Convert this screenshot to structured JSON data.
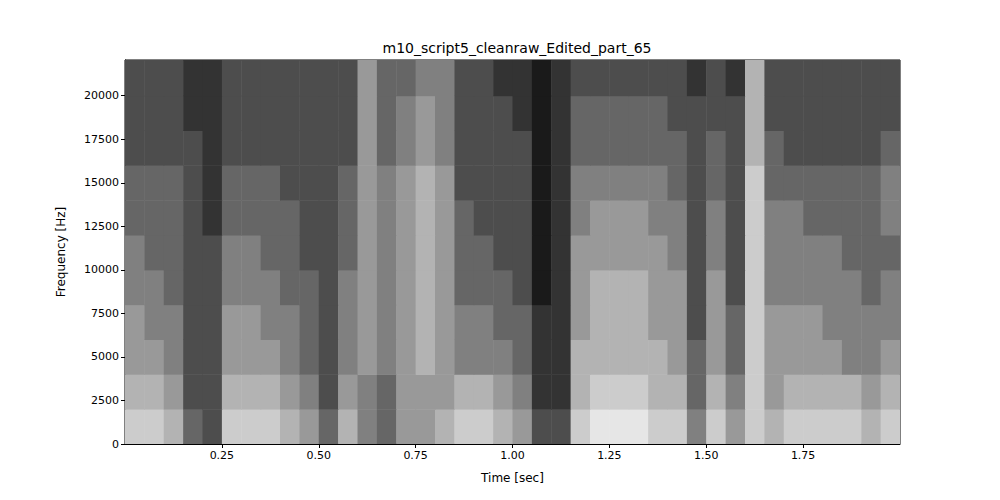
{
  "chart_data": {
    "type": "heatmap",
    "title": "m10_script5_cleanraw_Edited_part_65",
    "x_label": "Time [sec]",
    "y_label": "Frequency [Hz]",
    "xlim": [
      0,
      2.0
    ],
    "ylim": [
      0,
      22050
    ],
    "xticks": [
      0.25,
      {
        "value": 0.5,
        "label": "0.50"
      },
      0.75,
      {
        "value": 1,
        "label": "1.00"
      },
      1.25,
      {
        "value": 1.5,
        "label": "1.50"
      },
      1.75
    ],
    "yticks": [
      0,
      2500,
      5000,
      7500,
      10000,
      12500,
      15000,
      17500,
      20000
    ],
    "x_bins": [
      0,
      0.05,
      0.1,
      0.15,
      0.2,
      0.25,
      0.3,
      0.35,
      0.4,
      0.45,
      0.5,
      0.55,
      0.6,
      0.65,
      0.7,
      0.75,
      0.8,
      0.85,
      0.9,
      0.95,
      1.0,
      1.05,
      1.1,
      1.15,
      1.2,
      1.25,
      1.3,
      1.35,
      1.4,
      1.45,
      1.5,
      1.55,
      1.6,
      1.65,
      1.7,
      1.75,
      1.8,
      1.85,
      1.9,
      1.95,
      2.0
    ],
    "y_bins": [
      0,
      2000,
      4000,
      6000,
      8000,
      10000,
      12000,
      14000,
      16000,
      18000,
      20000,
      22050
    ],
    "zlim": [
      0,
      10
    ],
    "colors": [
      "#000000",
      "#ffffff"
    ],
    "cells": [
      [
        8,
        8,
        7,
        4,
        3,
        8,
        8,
        8,
        7,
        6,
        4,
        7,
        5,
        4,
        6,
        6,
        7,
        8,
        8,
        7,
        6,
        3,
        3,
        8,
        9,
        9,
        9,
        8,
        8,
        5,
        8,
        6,
        8,
        7,
        8,
        8,
        8,
        8,
        7,
        8
      ],
      [
        7,
        7,
        6,
        3,
        3,
        7,
        7,
        7,
        6,
        5,
        3,
        6,
        5,
        4,
        6,
        6,
        6,
        7,
        7,
        6,
        5,
        2,
        2,
        7,
        8,
        8,
        8,
        7,
        7,
        4,
        7,
        5,
        8,
        6,
        7,
        7,
        7,
        7,
        6,
        7
      ],
      [
        6,
        6,
        5,
        3,
        3,
        6,
        6,
        6,
        5,
        4,
        3,
        5,
        6,
        5,
        6,
        7,
        6,
        5,
        5,
        5,
        4,
        2,
        2,
        7,
        7,
        7,
        7,
        7,
        6,
        4,
        6,
        4,
        8,
        6,
        6,
        6,
        6,
        5,
        5,
        6
      ],
      [
        6,
        5,
        5,
        3,
        3,
        6,
        6,
        5,
        5,
        4,
        3,
        5,
        6,
        5,
        6,
        7,
        6,
        5,
        5,
        4,
        4,
        2,
        2,
        6,
        7,
        7,
        7,
        6,
        6,
        3,
        6,
        4,
        8,
        6,
        6,
        6,
        5,
        5,
        5,
        5
      ],
      [
        5,
        5,
        4,
        3,
        3,
        5,
        5,
        5,
        4,
        4,
        3,
        5,
        6,
        5,
        6,
        7,
        6,
        4,
        4,
        4,
        3,
        1,
        2,
        6,
        7,
        7,
        7,
        6,
        6,
        3,
        6,
        3,
        8,
        5,
        5,
        5,
        5,
        5,
        4,
        5
      ],
      [
        5,
        4,
        4,
        3,
        3,
        5,
        5,
        4,
        4,
        3,
        3,
        4,
        6,
        5,
        6,
        7,
        6,
        4,
        4,
        3,
        3,
        1,
        2,
        6,
        6,
        6,
        6,
        6,
        5,
        3,
        5,
        3,
        8,
        5,
        5,
        5,
        5,
        4,
        4,
        4
      ],
      [
        4,
        4,
        4,
        3,
        2,
        4,
        4,
        4,
        4,
        3,
        3,
        4,
        6,
        5,
        6,
        7,
        6,
        4,
        3,
        3,
        3,
        1,
        2,
        5,
        6,
        6,
        6,
        5,
        5,
        3,
        5,
        3,
        8,
        5,
        5,
        4,
        4,
        4,
        4,
        5
      ],
      [
        4,
        4,
        4,
        3,
        2,
        4,
        4,
        4,
        3,
        3,
        3,
        4,
        6,
        5,
        6,
        7,
        6,
        3,
        3,
        3,
        3,
        1,
        2,
        5,
        5,
        5,
        5,
        5,
        4,
        3,
        4,
        3,
        8,
        4,
        4,
        4,
        4,
        4,
        4,
        5
      ],
      [
        3,
        3,
        3,
        3,
        2,
        3,
        3,
        3,
        3,
        3,
        3,
        3,
        6,
        4,
        5,
        6,
        5,
        3,
        3,
        3,
        3,
        1,
        2,
        4,
        4,
        4,
        4,
        4,
        4,
        3,
        4,
        3,
        7,
        4,
        3,
        3,
        3,
        3,
        3,
        4
      ],
      [
        3,
        3,
        3,
        2,
        2,
        3,
        3,
        3,
        3,
        3,
        3,
        3,
        6,
        4,
        5,
        6,
        5,
        3,
        3,
        3,
        2,
        1,
        2,
        4,
        4,
        4,
        4,
        4,
        3,
        3,
        3,
        3,
        7,
        3,
        3,
        3,
        3,
        3,
        3,
        3
      ],
      [
        3,
        3,
        3,
        2,
        2,
        3,
        3,
        3,
        3,
        3,
        3,
        3,
        6,
        4,
        4,
        5,
        5,
        3,
        3,
        2,
        2,
        1,
        2,
        3,
        3,
        3,
        3,
        3,
        3,
        2,
        3,
        2,
        7,
        3,
        3,
        3,
        3,
        3,
        3,
        3
      ]
    ]
  }
}
